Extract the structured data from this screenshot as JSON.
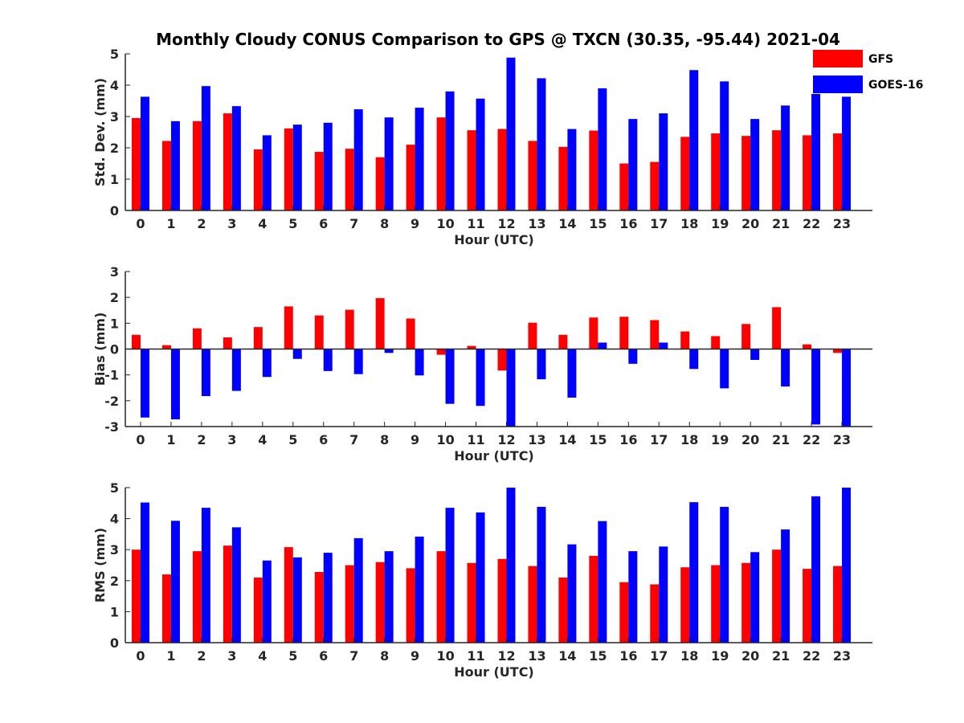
{
  "title": "Monthly Cloudy CONUS Comparison to GPS @ TXCN (30.35, -95.44) 2021-04",
  "legend": [
    {
      "name": "GFS",
      "color": "#ff0000"
    },
    {
      "name": "GOES-16",
      "color": "#0000ff"
    }
  ],
  "chart_data": [
    {
      "type": "bar",
      "xlabel": "Hour (UTC)",
      "ylabel": "Std. Dev. (mm)",
      "ylim": [
        0,
        5
      ],
      "yticks": [
        0,
        1,
        2,
        3,
        4,
        5
      ],
      "categories": [
        "0",
        "1",
        "2",
        "3",
        "4",
        "5",
        "6",
        "7",
        "8",
        "9",
        "10",
        "11",
        "12",
        "13",
        "14",
        "15",
        "16",
        "17",
        "18",
        "19",
        "20",
        "21",
        "22",
        "23"
      ],
      "series": [
        {
          "name": "GFS",
          "color": "#ff0000",
          "values": [
            2.95,
            2.22,
            2.85,
            3.1,
            1.95,
            2.62,
            1.87,
            1.97,
            1.7,
            2.1,
            2.97,
            2.56,
            2.6,
            2.22,
            2.03,
            2.55,
            1.5,
            1.55,
            2.35,
            2.46,
            2.38,
            2.56,
            2.4,
            2.46
          ]
        },
        {
          "name": "GOES-16",
          "color": "#0000ff",
          "values": [
            3.63,
            2.85,
            3.97,
            3.33,
            2.4,
            2.74,
            2.8,
            3.23,
            2.97,
            3.28,
            3.8,
            3.57,
            4.88,
            4.22,
            2.6,
            3.9,
            2.92,
            3.1,
            4.48,
            4.12,
            2.92,
            3.35,
            3.72,
            3.63
          ]
        }
      ]
    },
    {
      "type": "bar",
      "xlabel": "Hour (UTC)",
      "ylabel": "Bias (mm)",
      "ylim": [
        -3,
        3
      ],
      "yticks": [
        -3,
        -2,
        -1,
        0,
        1,
        2,
        3
      ],
      "categories": [
        "0",
        "1",
        "2",
        "3",
        "4",
        "5",
        "6",
        "7",
        "8",
        "9",
        "10",
        "11",
        "12",
        "13",
        "14",
        "15",
        "16",
        "17",
        "18",
        "19",
        "20",
        "21",
        "22",
        "23"
      ],
      "series": [
        {
          "name": "GFS",
          "color": "#ff0000",
          "values": [
            0.55,
            0.15,
            0.8,
            0.45,
            0.85,
            1.65,
            1.3,
            1.52,
            1.97,
            1.18,
            -0.22,
            0.12,
            -0.83,
            1.02,
            0.55,
            1.22,
            1.25,
            1.12,
            0.68,
            0.5,
            0.97,
            1.62,
            0.18,
            -0.15
          ]
        },
        {
          "name": "GOES-16",
          "color": "#0000ff",
          "values": [
            -2.65,
            -2.72,
            -1.82,
            -1.62,
            -1.08,
            -0.38,
            -0.85,
            -0.97,
            -0.15,
            -1.02,
            -2.12,
            -2.2,
            -3.0,
            -1.17,
            -1.88,
            0.25,
            -0.57,
            0.25,
            -0.77,
            -1.52,
            -0.42,
            -1.45,
            -2.92,
            -3.0
          ]
        }
      ]
    },
    {
      "type": "bar",
      "xlabel": "Hour (UTC)",
      "ylabel": "RMS (mm)",
      "ylim": [
        0,
        5
      ],
      "yticks": [
        0,
        1,
        2,
        3,
        4,
        5
      ],
      "categories": [
        "0",
        "1",
        "2",
        "3",
        "4",
        "5",
        "6",
        "7",
        "8",
        "9",
        "10",
        "11",
        "12",
        "13",
        "14",
        "15",
        "16",
        "17",
        "18",
        "19",
        "20",
        "21",
        "22",
        "23"
      ],
      "series": [
        {
          "name": "GFS",
          "color": "#ff0000",
          "values": [
            3.0,
            2.2,
            2.95,
            3.13,
            2.1,
            3.08,
            2.28,
            2.5,
            2.6,
            2.4,
            2.95,
            2.57,
            2.7,
            2.47,
            2.1,
            2.8,
            1.95,
            1.88,
            2.43,
            2.5,
            2.57,
            3.0,
            2.38,
            2.47
          ]
        },
        {
          "name": "GOES-16",
          "color": "#0000ff",
          "values": [
            4.52,
            3.93,
            4.35,
            3.72,
            2.65,
            2.75,
            2.9,
            3.37,
            2.95,
            3.42,
            4.35,
            4.2,
            5.0,
            4.38,
            3.17,
            3.92,
            2.95,
            3.1,
            4.53,
            4.38,
            2.92,
            3.65,
            4.72,
            5.0
          ]
        }
      ]
    }
  ]
}
